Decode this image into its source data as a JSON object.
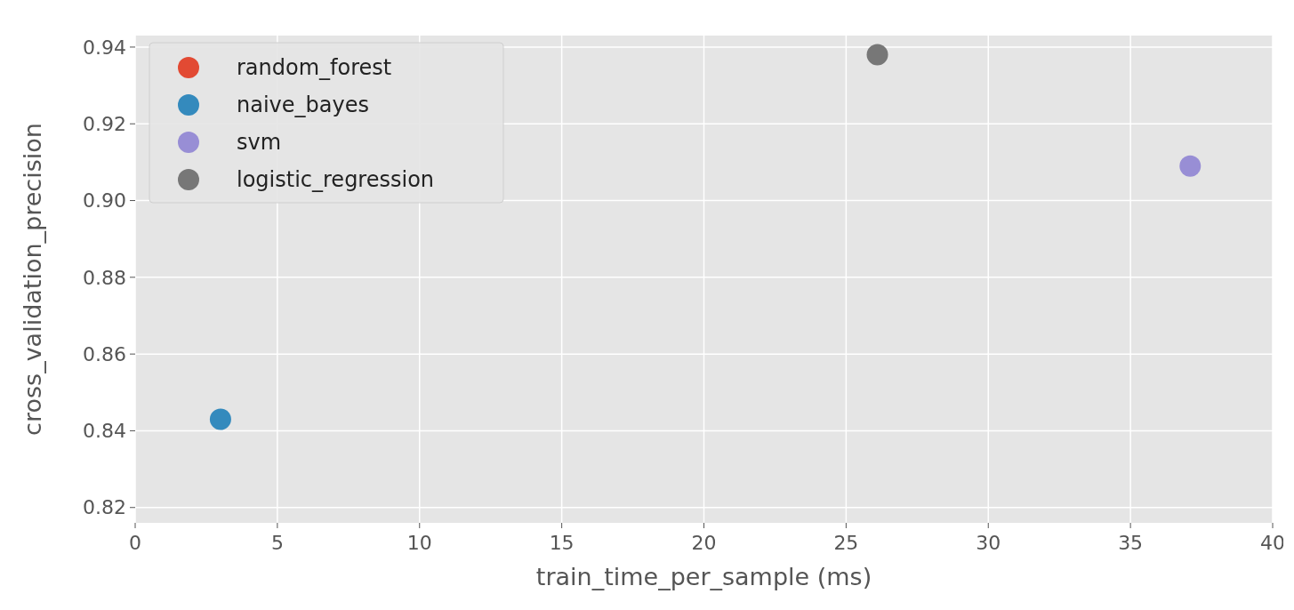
{
  "chart_data": {
    "type": "scatter",
    "xlabel": "train_time_per_sample (ms)",
    "ylabel": "cross_validation_precision",
    "xlim": [
      0,
      40
    ],
    "xticks": [
      0,
      5,
      10,
      15,
      20,
      25,
      30,
      35,
      40
    ],
    "ylim": [
      0.816,
      0.943
    ],
    "yticks": [
      0.82,
      0.84,
      0.86,
      0.88,
      {
        "value": 0.9,
        "label": "0.90"
      },
      0.92,
      0.94
    ],
    "grid": true,
    "legend": "top left",
    "marker": "circle",
    "series": [
      {
        "name": "random_forest",
        "color": "#e24a33",
        "x": [
          null
        ],
        "values": [
          null
        ]
      },
      {
        "name": "naive_bayes",
        "color": "#348abd",
        "x": [
          3.0
        ],
        "values": [
          0.843
        ]
      },
      {
        "name": "svm",
        "color": "#988ed5",
        "x": [
          37.1
        ],
        "values": [
          0.909
        ]
      },
      {
        "name": "logistic_regression",
        "color": "#777777",
        "x": [
          26.1
        ],
        "values": [
          0.938
        ]
      }
    ]
  }
}
